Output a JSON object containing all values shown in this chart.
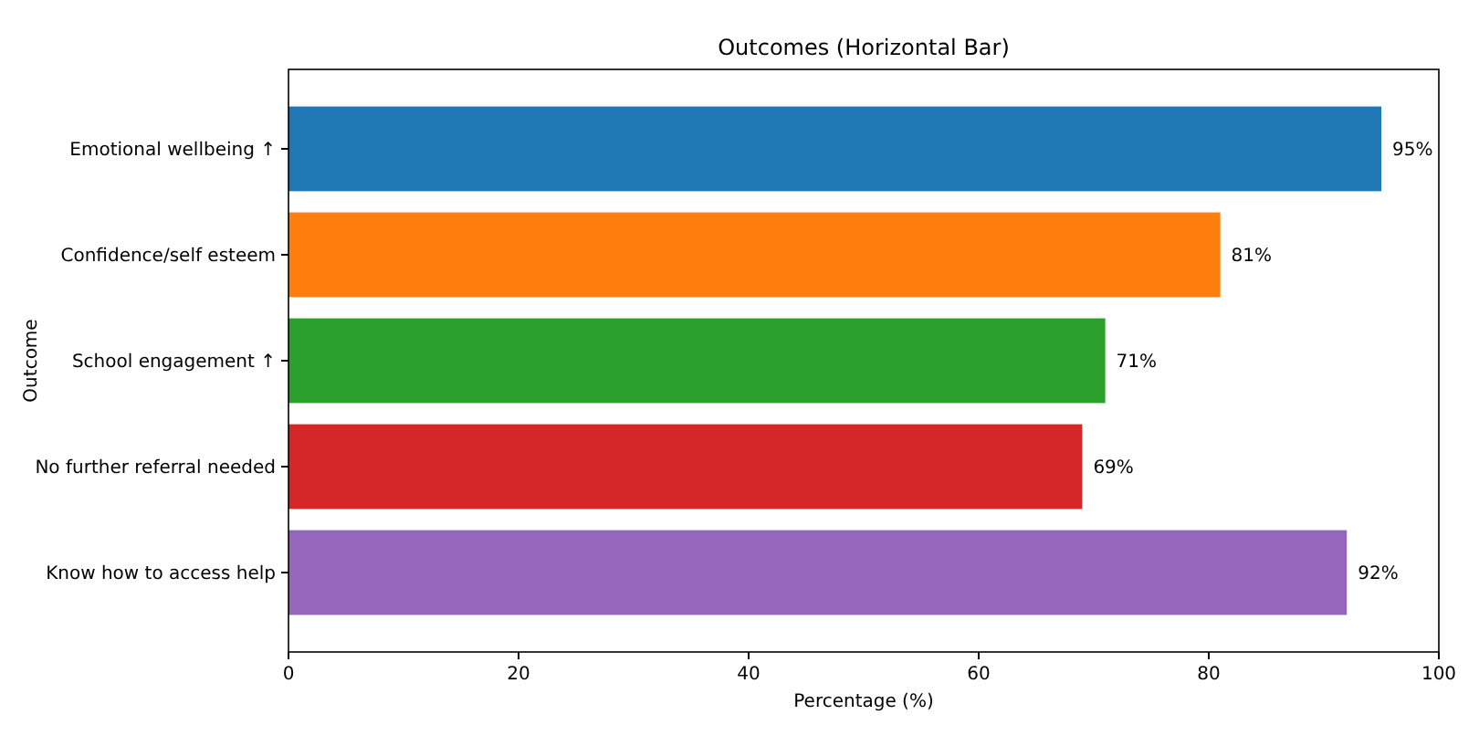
{
  "chart_data": {
    "type": "bar",
    "orientation": "horizontal",
    "title": "Outcomes (Horizontal Bar)",
    "xlabel": "Percentage (%)",
    "ylabel": "Outcome",
    "categories": [
      "Emotional wellbeing ↑",
      "Confidence/self esteem",
      "School engagement ↑",
      "No further referral needed",
      "Know how to access help"
    ],
    "values": [
      95,
      81,
      71,
      69,
      92
    ],
    "colors": [
      "#1f77b4",
      "#ff7f0e",
      "#2ca02c",
      "#d62728",
      "#9467bd"
    ],
    "value_labels": [
      "95%",
      "81%",
      "71%",
      "69%",
      "92%"
    ],
    "xlim": [
      0,
      100
    ],
    "xticks": [
      0,
      20,
      40,
      60,
      80,
      100
    ],
    "grid": false
  }
}
